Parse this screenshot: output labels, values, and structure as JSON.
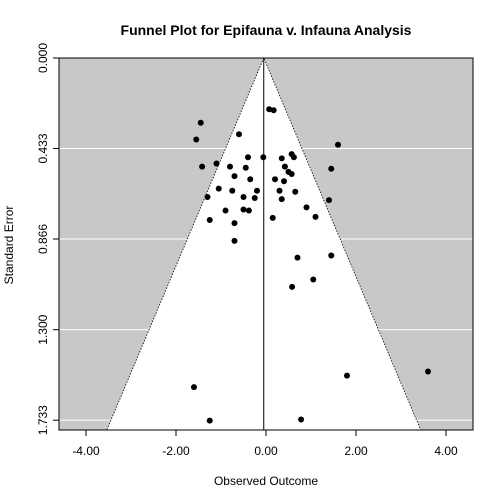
{
  "chart_data": {
    "type": "scatter",
    "title": "Funnel Plot for Epifauna v. Infauna Analysis",
    "xlabel": "Observed Outcome",
    "ylabel": "Standard Error",
    "xlim": [
      -4.6,
      4.6
    ],
    "ylim": [
      1.78,
      0.0
    ],
    "y_reversed": true,
    "x_ticks": [
      -4.0,
      -2.0,
      0.0,
      2.0,
      4.0
    ],
    "x_tick_labels": [
      "-4.00",
      "-2.00",
      "0.00",
      "2.00",
      "4.00"
    ],
    "y_ticks": [
      0.0,
      0.433,
      0.866,
      1.3,
      1.733
    ],
    "y_tick_labels": [
      "0.000",
      "0.433",
      "0.866",
      "1.300",
      "1.733"
    ],
    "grid": true,
    "funnel": {
      "center": -0.05,
      "multiplier": 1.96,
      "se_max": 1.78
    },
    "colors": {
      "background": "#c8c8c8",
      "funnel_fill": "#ffffff",
      "grid": "#ffffff",
      "points": "#000000",
      "center_line": "#000000"
    },
    "points": [
      {
        "x": 0.07,
        "y": 0.245
      },
      {
        "x": 0.17,
        "y": 0.25
      },
      {
        "x": -1.45,
        "y": 0.31
      },
      {
        "x": -1.55,
        "y": 0.39
      },
      {
        "x": -0.6,
        "y": 0.365
      },
      {
        "x": 1.6,
        "y": 0.415
      },
      {
        "x": -0.06,
        "y": 0.475
      },
      {
        "x": -0.4,
        "y": 0.475
      },
      {
        "x": 0.57,
        "y": 0.46
      },
      {
        "x": 0.62,
        "y": 0.475
      },
      {
        "x": 0.35,
        "y": 0.48
      },
      {
        "x": -1.1,
        "y": 0.505
      },
      {
        "x": -1.42,
        "y": 0.52
      },
      {
        "x": -0.8,
        "y": 0.52
      },
      {
        "x": -0.45,
        "y": 0.525
      },
      {
        "x": 0.42,
        "y": 0.52
      },
      {
        "x": 0.5,
        "y": 0.545
      },
      {
        "x": 0.57,
        "y": 0.555
      },
      {
        "x": 1.45,
        "y": 0.53
      },
      {
        "x": -0.7,
        "y": 0.565
      },
      {
        "x": -0.35,
        "y": 0.58
      },
      {
        "x": 0.2,
        "y": 0.58
      },
      {
        "x": 0.4,
        "y": 0.59
      },
      {
        "x": -1.05,
        "y": 0.625
      },
      {
        "x": -0.75,
        "y": 0.635
      },
      {
        "x": -0.2,
        "y": 0.635
      },
      {
        "x": 0.3,
        "y": 0.635
      },
      {
        "x": 0.65,
        "y": 0.64
      },
      {
        "x": -1.3,
        "y": 0.665
      },
      {
        "x": -0.5,
        "y": 0.665
      },
      {
        "x": -0.25,
        "y": 0.67
      },
      {
        "x": 0.35,
        "y": 0.675
      },
      {
        "x": 1.4,
        "y": 0.68
      },
      {
        "x": -0.9,
        "y": 0.73
      },
      {
        "x": -0.5,
        "y": 0.725
      },
      {
        "x": -0.38,
        "y": 0.73
      },
      {
        "x": 0.9,
        "y": 0.715
      },
      {
        "x": 1.1,
        "y": 0.76
      },
      {
        "x": 0.15,
        "y": 0.765
      },
      {
        "x": -1.25,
        "y": 0.775
      },
      {
        "x": -0.7,
        "y": 0.79
      },
      {
        "x": -0.7,
        "y": 0.875
      },
      {
        "x": 1.45,
        "y": 0.945
      },
      {
        "x": 0.7,
        "y": 0.955
      },
      {
        "x": 1.05,
        "y": 1.06
      },
      {
        "x": 0.58,
        "y": 1.095
      },
      {
        "x": 3.6,
        "y": 1.5
      },
      {
        "x": 1.8,
        "y": 1.52
      },
      {
        "x": -1.6,
        "y": 1.575
      },
      {
        "x": -1.25,
        "y": 1.735
      },
      {
        "x": 0.78,
        "y": 1.73
      }
    ]
  }
}
